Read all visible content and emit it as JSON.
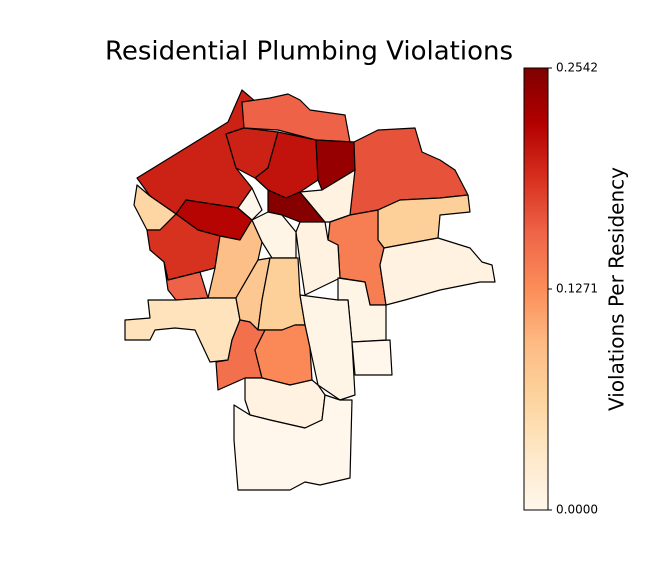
{
  "chart_data": {
    "type": "choropleth",
    "title": "Residential Plumbing Violations",
    "colorbar_label": "Violations Per Residency",
    "clim": [
      0,
      0.2542
    ],
    "cticks": [
      {
        "value": 0,
        "label": "0.0000"
      },
      0.1271,
      0.2542
    ],
    "colormap": [
      "#fff7ec",
      "#fee8c8",
      "#fdd49e",
      "#fdbb84",
      "#fc8d59",
      "#ef6548",
      "#d7301f",
      "#b30000",
      "#7f0000"
    ],
    "values": [
      0.2,
      0.16,
      0.2,
      0.21,
      0.24,
      0.17,
      0.06,
      0.22,
      0,
      0.25,
      0.01,
      0.19,
      0.09,
      0.005,
      0.07,
      0.14,
      0.01,
      0.01,
      0.16,
      0.04,
      0.08,
      0.07,
      0.005,
      0.005,
      0.15,
      0.13,
      0,
      0.01,
      0
    ]
  }
}
